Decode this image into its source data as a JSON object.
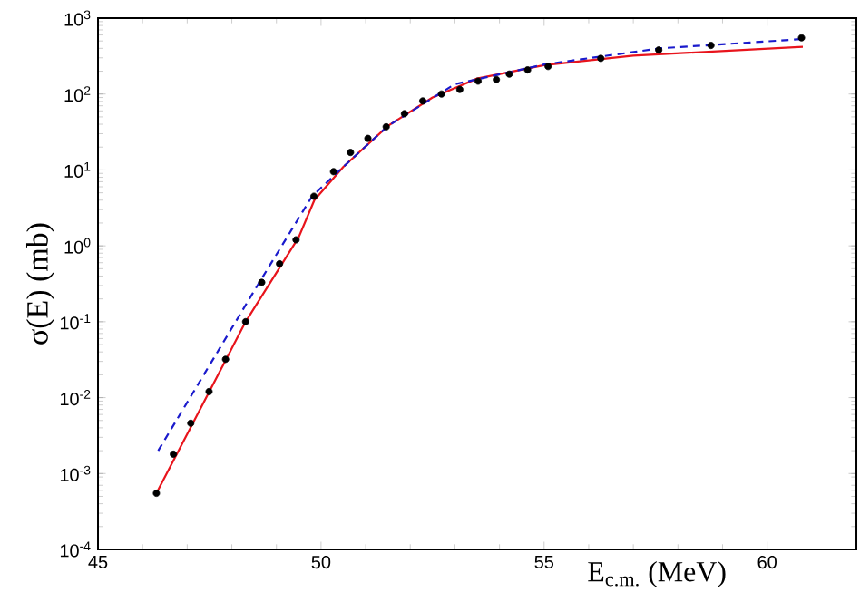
{
  "chart_data": {
    "type": "line",
    "xlabel": "E$_{c.m.}$ (MeV)",
    "ylabel": "σ(E) (mb)",
    "xlim": [
      45,
      62
    ],
    "xticks": [
      45,
      50,
      55,
      60
    ],
    "ylim": [
      0.0001,
      1000
    ],
    "yticks": [
      {
        "value": 0.0001,
        "label": "10$^{-4}$"
      },
      {
        "value": 0.001,
        "label": "10$^{-3}$"
      },
      {
        "value": 0.01,
        "label": "10$^{-2}$"
      },
      {
        "value": 0.1,
        "label": "10$^{-1}$"
      },
      {
        "value": 1,
        "label": "10$^{0}$"
      },
      {
        "value": 10,
        "label": "10$^{1}$"
      },
      {
        "value": 100,
        "label": "10$^{2}$"
      },
      {
        "value": 1000,
        "label": "10$^{3}$"
      }
    ],
    "log": "y",
    "grid": false,
    "series": [
      {
        "type": "scatter",
        "marker": "circle",
        "color": "#000000",
        "x": [
          46.31,
          46.69,
          47.08,
          47.49,
          47.86,
          48.31,
          48.67,
          49.07,
          49.44,
          49.84,
          50.28,
          50.66,
          51.05,
          51.46,
          51.87,
          52.28,
          52.7,
          53.11,
          53.52,
          53.93,
          54.22,
          54.63,
          55.09,
          56.27,
          57.57,
          58.74,
          60.77
        ],
        "values": [
          0.00055,
          0.0018,
          0.0046,
          0.012,
          0.032,
          0.1,
          0.33,
          0.58,
          1.2,
          4.5,
          9.5,
          17,
          26,
          37,
          55,
          81,
          100,
          115,
          148,
          155,
          183,
          208,
          231,
          295,
          380,
          437,
          550
        ]
      },
      {
        "marker": "none",
        "line_style": "solid",
        "color": "#e8141c",
        "x": [
          46.31,
          48.31,
          49.5,
          49.85,
          50.5,
          51.5,
          52.5,
          53.5,
          55,
          57,
          60.8
        ],
        "values": [
          0.00055,
          0.1,
          1.3,
          4,
          11,
          38,
          90,
          160,
          240,
          320,
          420
        ]
      },
      {
        "marker": "none",
        "line_style": "dashed",
        "color": "#1a1acc",
        "x": [
          46.35,
          48.51,
          49.8,
          50.5,
          51.5,
          53,
          55,
          57.6,
          60.8
        ],
        "values": [
          0.002,
          0.26,
          4.5,
          11,
          38,
          135,
          245,
          400,
          530
        ]
      }
    ]
  }
}
